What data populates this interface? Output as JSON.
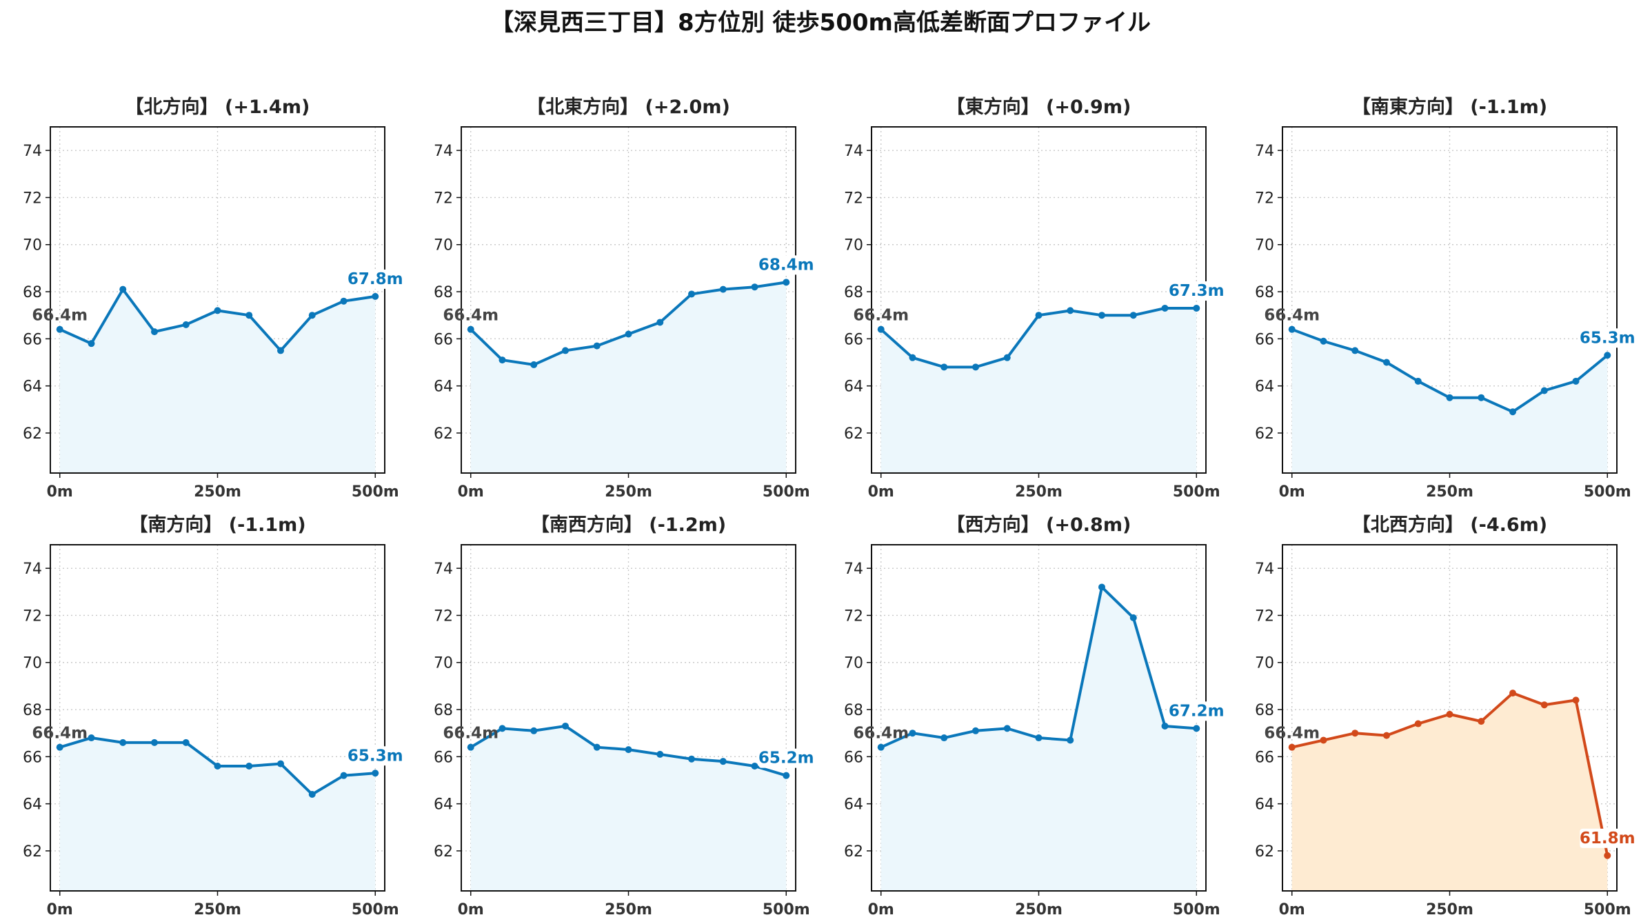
{
  "title": "【深見西三丁目】8方位別 徒歩500m高低差断面プロファイル",
  "colors": {
    "normal_line": "#0A77BA",
    "normal_fill": "#ECF7FC",
    "alert_line": "#D2491A",
    "alert_fill": "#FEEBD2",
    "start_label": "#444444"
  },
  "chart_data": [
    {
      "type": "area",
      "title": "【北方向】 (+1.4m)",
      "style": "normal",
      "x": [
        0,
        50,
        100,
        150,
        200,
        250,
        300,
        350,
        400,
        450,
        500
      ],
      "values": [
        66.4,
        65.8,
        68.1,
        66.3,
        66.6,
        67.2,
        67.0,
        65.5,
        67.0,
        67.6,
        67.8
      ],
      "start_label": "66.4m",
      "end_label": "67.8m",
      "xticks": [
        "0m",
        "250m",
        "500m"
      ],
      "yticks": [
        62,
        64,
        66,
        68,
        70,
        72,
        74
      ],
      "xlim": [
        -15,
        515
      ],
      "ylim": [
        60.3,
        75.0
      ],
      "grid": true
    },
    {
      "type": "area",
      "title": "【北東方向】 (+2.0m)",
      "style": "normal",
      "x": [
        0,
        50,
        100,
        150,
        200,
        250,
        300,
        350,
        400,
        450,
        500
      ],
      "values": [
        66.4,
        65.1,
        64.9,
        65.5,
        65.7,
        66.2,
        66.7,
        67.9,
        68.1,
        68.2,
        68.4
      ],
      "start_label": "66.4m",
      "end_label": "68.4m",
      "xticks": [
        "0m",
        "250m",
        "500m"
      ],
      "yticks": [
        62,
        64,
        66,
        68,
        70,
        72,
        74
      ],
      "xlim": [
        -15,
        515
      ],
      "ylim": [
        60.3,
        75.0
      ],
      "grid": true
    },
    {
      "type": "area",
      "title": "【東方向】 (+0.9m)",
      "style": "normal",
      "x": [
        0,
        50,
        100,
        150,
        200,
        250,
        300,
        350,
        400,
        450,
        500
      ],
      "values": [
        66.4,
        65.2,
        64.8,
        64.8,
        65.2,
        67.0,
        67.2,
        67.0,
        67.0,
        67.3,
        67.3
      ],
      "start_label": "66.4m",
      "end_label": "67.3m",
      "xticks": [
        "0m",
        "250m",
        "500m"
      ],
      "yticks": [
        62,
        64,
        66,
        68,
        70,
        72,
        74
      ],
      "xlim": [
        -15,
        515
      ],
      "ylim": [
        60.3,
        75.0
      ],
      "grid": true
    },
    {
      "type": "area",
      "title": "【南東方向】 (-1.1m)",
      "style": "normal",
      "x": [
        0,
        50,
        100,
        150,
        200,
        250,
        300,
        350,
        400,
        450,
        500
      ],
      "values": [
        66.4,
        65.9,
        65.5,
        65.0,
        64.2,
        63.5,
        63.5,
        62.9,
        63.8,
        64.2,
        65.3
      ],
      "start_label": "66.4m",
      "end_label": "65.3m",
      "xticks": [
        "0m",
        "250m",
        "500m"
      ],
      "yticks": [
        62,
        64,
        66,
        68,
        70,
        72,
        74
      ],
      "xlim": [
        -15,
        515
      ],
      "ylim": [
        60.3,
        75.0
      ],
      "grid": true
    },
    {
      "type": "area",
      "title": "【南方向】 (-1.1m)",
      "style": "normal",
      "x": [
        0,
        50,
        100,
        150,
        200,
        250,
        300,
        350,
        400,
        450,
        500
      ],
      "values": [
        66.4,
        66.8,
        66.6,
        66.6,
        66.6,
        65.6,
        65.6,
        65.7,
        64.4,
        65.2,
        65.3
      ],
      "start_label": "66.4m",
      "end_label": "65.3m",
      "xticks": [
        "0m",
        "250m",
        "500m"
      ],
      "yticks": [
        62,
        64,
        66,
        68,
        70,
        72,
        74
      ],
      "xlim": [
        -15,
        515
      ],
      "ylim": [
        60.3,
        75.0
      ],
      "grid": true
    },
    {
      "type": "area",
      "title": "【南西方向】 (-1.2m)",
      "style": "normal",
      "x": [
        0,
        50,
        100,
        150,
        200,
        250,
        300,
        350,
        400,
        450,
        500
      ],
      "values": [
        66.4,
        67.2,
        67.1,
        67.3,
        66.4,
        66.3,
        66.1,
        65.9,
        65.8,
        65.6,
        65.2
      ],
      "start_label": "66.4m",
      "end_label": "65.2m",
      "xticks": [
        "0m",
        "250m",
        "500m"
      ],
      "yticks": [
        62,
        64,
        66,
        68,
        70,
        72,
        74
      ],
      "xlim": [
        -15,
        515
      ],
      "ylim": [
        60.3,
        75.0
      ],
      "grid": true
    },
    {
      "type": "area",
      "title": "【西方向】 (+0.8m)",
      "style": "normal",
      "x": [
        0,
        50,
        100,
        150,
        200,
        250,
        300,
        350,
        400,
        450,
        500
      ],
      "values": [
        66.4,
        67.0,
        66.8,
        67.1,
        67.2,
        66.8,
        66.7,
        73.2,
        71.9,
        67.3,
        67.2
      ],
      "start_label": "66.4m",
      "end_label": "67.2m",
      "xticks": [
        "0m",
        "250m",
        "500m"
      ],
      "yticks": [
        62,
        64,
        66,
        68,
        70,
        72,
        74
      ],
      "xlim": [
        -15,
        515
      ],
      "ylim": [
        60.3,
        75.0
      ],
      "grid": true
    },
    {
      "type": "area",
      "title": "【北西方向】 (-4.6m)",
      "style": "alert",
      "x": [
        0,
        50,
        100,
        150,
        200,
        250,
        300,
        350,
        400,
        450,
        500
      ],
      "values": [
        66.4,
        66.7,
        67.0,
        66.9,
        67.4,
        67.8,
        67.5,
        68.7,
        68.2,
        68.4,
        61.8
      ],
      "start_label": "66.4m",
      "end_label": "61.8m",
      "xticks": [
        "0m",
        "250m",
        "500m"
      ],
      "yticks": [
        62,
        64,
        66,
        68,
        70,
        72,
        74
      ],
      "xlim": [
        -15,
        515
      ],
      "ylim": [
        60.3,
        75.0
      ],
      "grid": true
    }
  ]
}
